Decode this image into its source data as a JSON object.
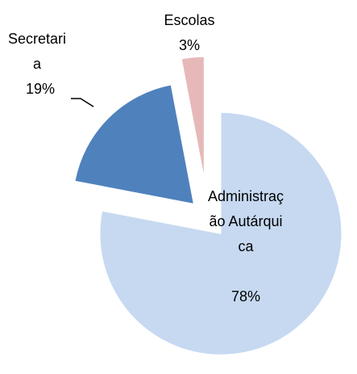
{
  "chart_data": {
    "type": "pie",
    "categories": [
      "Administração Autárquica",
      "Secretaria",
      "Escolas"
    ],
    "values": [
      78,
      19,
      3
    ],
    "value_labels": [
      "78%",
      "19%",
      "3%"
    ],
    "colors": [
      "#c6d9f1",
      "#4f81bd",
      "#e6b9b8"
    ]
  }
}
